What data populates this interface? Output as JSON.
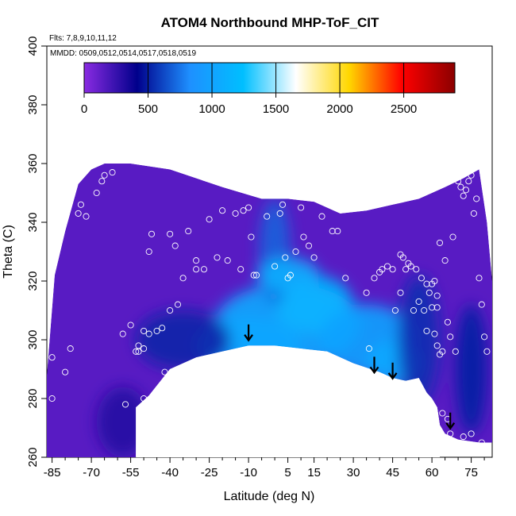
{
  "chart_data": {
    "type": "heatmap",
    "title": "ATOM4 Northbound MHP-ToF_CIT",
    "flights_note": "Flts: 7,8,9,10,11,12",
    "dates_note": "MMDD: 0509,0512,0514,0517,0518,0519",
    "xlabel": "Latitude (deg N)",
    "ylabel": "Theta (C)",
    "xlim": [
      -87,
      83
    ],
    "ylim": [
      260,
      400
    ],
    "x_ticks": [
      "-85",
      "-70",
      "-55",
      "-40",
      "-25",
      "-10",
      "5",
      "15",
      "30",
      "45",
      "60",
      "75"
    ],
    "x_tick_values": [
      -85,
      -70,
      -55,
      -40,
      -25,
      -10,
      5,
      15,
      30,
      45,
      60,
      75
    ],
    "y_ticks": [
      "260",
      "280",
      "300",
      "320",
      "340",
      "360",
      "380",
      "400"
    ],
    "y_tick_values": [
      260,
      280,
      300,
      320,
      340,
      360,
      380,
      400
    ],
    "colorbar": {
      "range": [
        0,
        2900
      ],
      "ticks": [
        "0",
        "500",
        "1000",
        "1500",
        "2000",
        "2500"
      ],
      "tick_values": [
        0,
        500,
        1000,
        1500,
        2000,
        2500
      ],
      "colors": [
        "#8a2be2",
        "#00008b",
        "#1e90ff",
        "#00bfff",
        "#ffffff",
        "#ffd700",
        "#ff0000",
        "#8b0000"
      ]
    },
    "top_boundary": [
      [
        -87,
        288
      ],
      [
        -84,
        322
      ],
      [
        -80,
        337
      ],
      [
        -75,
        353
      ],
      [
        -70,
        358
      ],
      [
        -65,
        360
      ],
      [
        -55,
        360
      ],
      [
        -40,
        358
      ],
      [
        -20,
        352
      ],
      [
        -5,
        348
      ],
      [
        5,
        348
      ],
      [
        15,
        347
      ],
      [
        25,
        343
      ],
      [
        35,
        344
      ],
      [
        45,
        346
      ],
      [
        55,
        348
      ],
      [
        65,
        352
      ],
      [
        72,
        355
      ],
      [
        78,
        358
      ],
      [
        81,
        340
      ],
      [
        83,
        320
      ],
      [
        83,
        300
      ]
    ],
    "bottom_boundary": [
      [
        -87,
        260
      ],
      [
        -53,
        260
      ],
      [
        -53,
        277
      ],
      [
        -48,
        281
      ],
      [
        -40,
        290
      ],
      [
        -30,
        294
      ],
      [
        -20,
        296
      ],
      [
        -10,
        298
      ],
      [
        0,
        298
      ],
      [
        10,
        297
      ],
      [
        20,
        296
      ],
      [
        30,
        292
      ],
      [
        40,
        289
      ],
      [
        45,
        287
      ],
      [
        50,
        286
      ],
      [
        55,
        287
      ],
      [
        58,
        282
      ],
      [
        60,
        280
      ],
      [
        62,
        277
      ],
      [
        63,
        271
      ],
      [
        65,
        268
      ],
      [
        70,
        266
      ],
      [
        78,
        265
      ],
      [
        83,
        265
      ]
    ],
    "white_gap": [
      [
        -53,
        260
      ],
      [
        -53,
        277
      ],
      [
        -48,
        281
      ],
      [
        -40,
        290
      ],
      [
        -30,
        294
      ],
      [
        -20,
        296
      ],
      [
        -10,
        298
      ],
      [
        0,
        298
      ],
      [
        10,
        297
      ],
      [
        20,
        296
      ],
      [
        30,
        292
      ],
      [
        40,
        289
      ],
      [
        45,
        287
      ],
      [
        50,
        286
      ],
      [
        55,
        287
      ],
      [
        58,
        282
      ],
      [
        60,
        280
      ],
      [
        62,
        277
      ],
      [
        63,
        271
      ],
      [
        63,
        260
      ]
    ],
    "blobs": [
      {
        "lat": -10,
        "theta": 298,
        "rx": 20,
        "ry": 10,
        "value": 900
      },
      {
        "lat": 5,
        "theta": 305,
        "rx": 28,
        "ry": 14,
        "value": 1050
      },
      {
        "lat": 15,
        "theta": 312,
        "rx": 15,
        "ry": 10,
        "value": 1150
      },
      {
        "lat": 35,
        "theta": 300,
        "rx": 18,
        "ry": 12,
        "value": 1000
      },
      {
        "lat": 45,
        "theta": 292,
        "rx": 10,
        "ry": 8,
        "value": 1050
      },
      {
        "lat": 0,
        "theta": 330,
        "rx": 6,
        "ry": 18,
        "value": 700
      },
      {
        "lat": 5,
        "theta": 322,
        "rx": 12,
        "ry": 6,
        "value": 1100
      },
      {
        "lat": 55,
        "theta": 300,
        "rx": 8,
        "ry": 22,
        "value": 550
      },
      {
        "lat": 75,
        "theta": 290,
        "rx": 6,
        "ry": 22,
        "value": 500
      },
      {
        "lat": -35,
        "theta": 300,
        "rx": 18,
        "ry": 10,
        "value": 520
      },
      {
        "lat": -58,
        "theta": 272,
        "rx": 10,
        "ry": 12,
        "value": 300
      }
    ],
    "arrows": [
      {
        "lat": -10,
        "theta": 299
      },
      {
        "lat": 38,
        "theta": 288
      },
      {
        "lat": 45,
        "theta": 286
      },
      {
        "lat": 67,
        "theta": 269
      }
    ],
    "points": [
      [
        -85,
        294
      ],
      [
        -85,
        280
      ],
      [
        -84,
        329
      ],
      [
        -83,
        335
      ],
      [
        -80,
        289
      ],
      [
        -78,
        297
      ],
      [
        -75,
        343
      ],
      [
        -74,
        346
      ],
      [
        -72,
        342
      ],
      [
        -68,
        350
      ],
      [
        -66,
        354
      ],
      [
        -65,
        356
      ],
      [
        -62,
        357
      ],
      [
        -58,
        302
      ],
      [
        -57,
        278
      ],
      [
        -55,
        305
      ],
      [
        -53,
        296
      ],
      [
        -52,
        298
      ],
      [
        -50,
        303
      ],
      [
        -50,
        297
      ],
      [
        -50,
        280
      ],
      [
        -52,
        296
      ],
      [
        -48,
        302
      ],
      [
        -48,
        330
      ],
      [
        -47,
        336
      ],
      [
        -45,
        303
      ],
      [
        -43,
        304
      ],
      [
        -42,
        289
      ],
      [
        -40,
        310
      ],
      [
        -40,
        336
      ],
      [
        -38,
        332
      ],
      [
        -37,
        312
      ],
      [
        -35,
        321
      ],
      [
        -33,
        337
      ],
      [
        -30,
        327
      ],
      [
        -30,
        324
      ],
      [
        -27,
        324
      ],
      [
        -25,
        341
      ],
      [
        -22,
        328
      ],
      [
        -20,
        344
      ],
      [
        -18,
        327
      ],
      [
        -15,
        343
      ],
      [
        -13,
        324
      ],
      [
        -12,
        344
      ],
      [
        -10,
        345
      ],
      [
        -9,
        335
      ],
      [
        -8,
        322
      ],
      [
        -7,
        322
      ],
      [
        -3,
        342
      ],
      [
        0,
        325
      ],
      [
        2,
        343
      ],
      [
        3,
        346
      ],
      [
        4,
        328
      ],
      [
        5,
        321
      ],
      [
        6,
        322
      ],
      [
        8,
        330
      ],
      [
        10,
        345
      ],
      [
        11,
        335
      ],
      [
        13,
        332
      ],
      [
        15,
        328
      ],
      [
        18,
        342
      ],
      [
        22,
        337
      ],
      [
        24,
        337
      ],
      [
        27,
        321
      ],
      [
        31,
        346
      ],
      [
        35,
        316
      ],
      [
        36,
        297
      ],
      [
        38,
        321
      ],
      [
        40,
        323
      ],
      [
        41,
        324
      ],
      [
        43,
        325
      ],
      [
        45,
        324
      ],
      [
        46,
        310
      ],
      [
        48,
        316
      ],
      [
        48,
        329
      ],
      [
        49,
        328
      ],
      [
        50,
        324
      ],
      [
        51,
        326
      ],
      [
        52,
        325
      ],
      [
        53,
        310
      ],
      [
        54,
        324
      ],
      [
        55,
        313
      ],
      [
        56,
        321
      ],
      [
        57,
        310
      ],
      [
        58,
        303
      ],
      [
        59,
        316
      ],
      [
        60,
        319
      ],
      [
        61,
        320
      ],
      [
        62,
        315
      ],
      [
        63,
        333
      ],
      [
        65,
        327
      ],
      [
        66,
        306
      ],
      [
        67,
        301
      ],
      [
        68,
        335
      ],
      [
        69,
        296
      ],
      [
        70,
        354
      ],
      [
        71,
        352
      ],
      [
        72,
        349
      ],
      [
        73,
        351
      ],
      [
        74,
        354
      ],
      [
        75,
        356
      ],
      [
        76,
        343
      ],
      [
        77,
        348
      ],
      [
        78,
        321
      ],
      [
        79,
        312
      ],
      [
        80,
        301
      ],
      [
        81,
        296
      ],
      [
        62,
        298
      ],
      [
        64,
        296
      ],
      [
        61,
        302
      ],
      [
        57,
        281
      ],
      [
        64,
        275
      ],
      [
        66,
        273
      ],
      [
        67,
        268
      ],
      [
        72,
        267
      ],
      [
        75,
        268
      ],
      [
        79,
        265
      ],
      [
        60,
        270
      ],
      [
        63,
        295
      ],
      [
        58,
        319
      ],
      [
        60,
        311
      ],
      [
        62,
        311
      ]
    ]
  }
}
